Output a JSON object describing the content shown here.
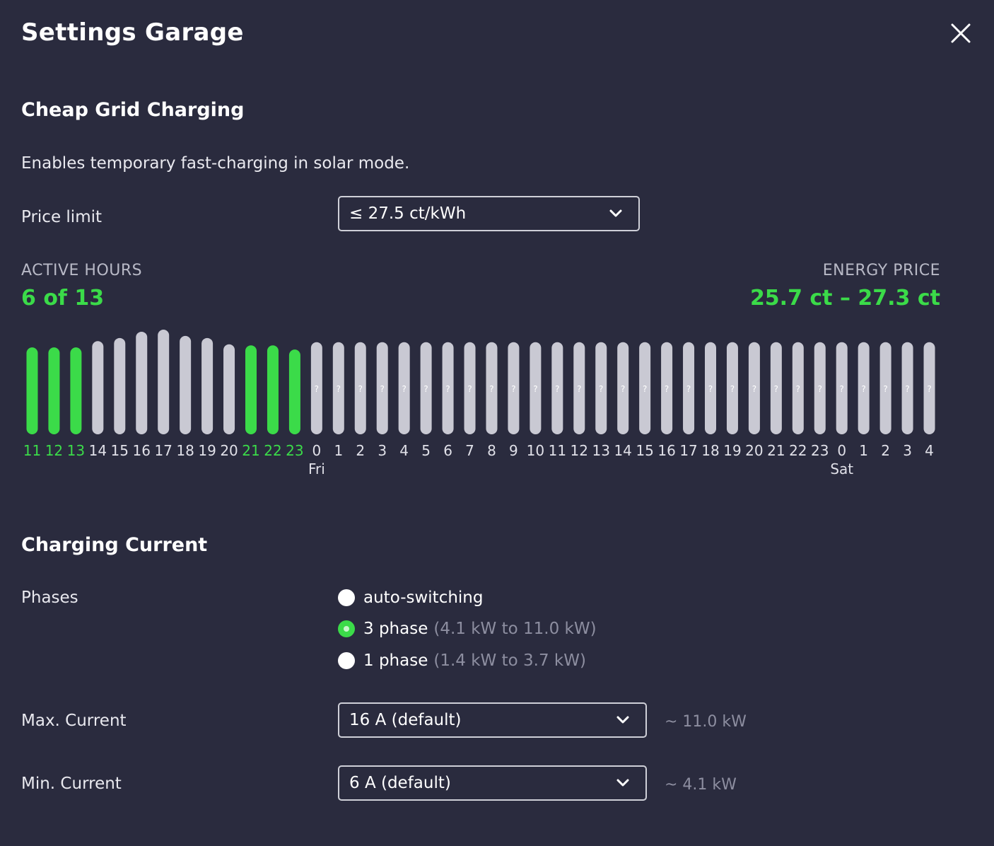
{
  "dialog": {
    "title": "Settings Garage",
    "close_icon": "close-icon"
  },
  "cheap_grid": {
    "title": "Cheap Grid Charging",
    "description": "Enables temporary fast-charging in solar mode.",
    "price_limit_label": "Price limit",
    "price_limit_value": "≤ 27.5 ct/kWh",
    "active_hours_caption": "ACTIVE HOURS",
    "active_hours_value": "6 of 13",
    "energy_price_caption": "ENERGY PRICE",
    "energy_price_value": "25.7 ct – 27.3 ct"
  },
  "chart_data": {
    "type": "bar",
    "categories": [
      "11",
      "12",
      "13",
      "14",
      "15",
      "16",
      "17",
      "18",
      "19",
      "20",
      "21",
      "22",
      "23",
      "0",
      "1",
      "2",
      "3",
      "4",
      "5",
      "6",
      "7",
      "8",
      "9",
      "10",
      "11",
      "12",
      "13",
      "14",
      "15",
      "16",
      "17",
      "18",
      "19",
      "20",
      "21",
      "22",
      "23",
      "0",
      "1",
      "2",
      "3",
      "4"
    ],
    "relative_heights": [
      0.83,
      0.83,
      0.83,
      0.89,
      0.92,
      0.98,
      1.0,
      0.94,
      0.92,
      0.86,
      0.85,
      0.85,
      0.81,
      0.88,
      0.88,
      0.88,
      0.88,
      0.88,
      0.88,
      0.88,
      0.88,
      0.88,
      0.88,
      0.88,
      0.88,
      0.88,
      0.88,
      0.88,
      0.88,
      0.88,
      0.88,
      0.88,
      0.88,
      0.88,
      0.88,
      0.88,
      0.88,
      0.88,
      0.88,
      0.88,
      0.88,
      0.88
    ],
    "active": [
      true,
      true,
      true,
      false,
      false,
      false,
      false,
      false,
      false,
      false,
      true,
      true,
      true,
      false,
      false,
      false,
      false,
      false,
      false,
      false,
      false,
      false,
      false,
      false,
      false,
      false,
      false,
      false,
      false,
      false,
      false,
      false,
      false,
      false,
      false,
      false,
      false,
      false,
      false,
      false,
      false,
      false
    ],
    "unknown": [
      false,
      false,
      false,
      false,
      false,
      false,
      false,
      false,
      false,
      false,
      false,
      false,
      false,
      true,
      true,
      true,
      true,
      true,
      true,
      true,
      true,
      true,
      true,
      true,
      true,
      true,
      true,
      true,
      true,
      true,
      true,
      true,
      true,
      true,
      true,
      true,
      true,
      true,
      true,
      true,
      true,
      true
    ],
    "unknown_mark": "?",
    "day_labels": [
      {
        "index": 13,
        "label": "Fri"
      },
      {
        "index": 37,
        "label": "Sat"
      }
    ],
    "active_color": "#3bdb49",
    "inactive_color": "#c9c9d3",
    "active_label_color": "#3bdb49",
    "label_color": "#e0e0e8"
  },
  "charging_current": {
    "title": "Charging Current",
    "phases_label": "Phases",
    "phase_options": [
      {
        "label": "auto-switching",
        "range": "",
        "checked": false
      },
      {
        "label": "3 phase",
        "range": "(4.1 kW to 11.0 kW)",
        "checked": true
      },
      {
        "label": "1 phase",
        "range": "(1.4 kW to 3.7 kW)",
        "checked": false
      }
    ],
    "max_current_label": "Max. Current",
    "max_current_value": "16 A (default)",
    "max_current_hint": "~ 11.0 kW",
    "min_current_label": "Min. Current",
    "min_current_value": "6 A (default)",
    "min_current_hint": "~ 4.1 kW"
  },
  "colors": {
    "background": "#2a2b3e",
    "accent": "#3bdb49"
  }
}
